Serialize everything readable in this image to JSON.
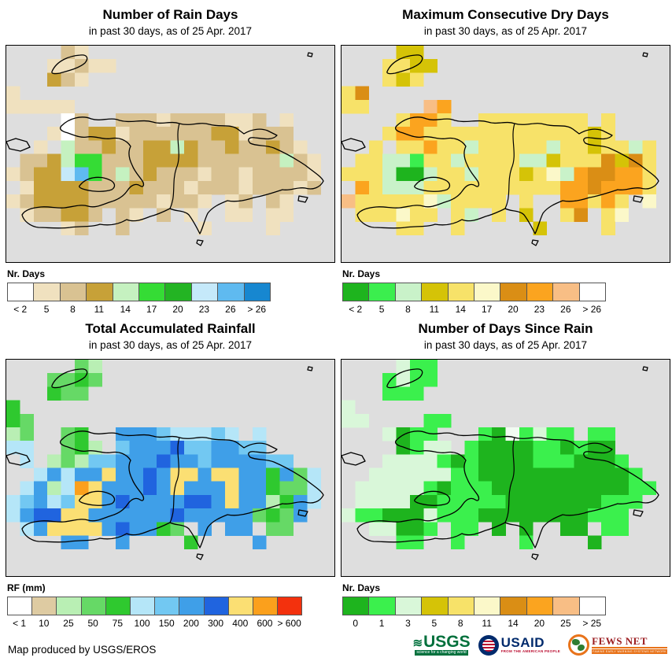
{
  "footer": {
    "credit": "Map produced by USGS/EROS"
  },
  "map_common": {
    "sea_color": "#DEDEDE",
    "date_note": "25 Apr. 2017",
    "region": "Hispaniola (Haiti / Dominican Republic)"
  },
  "panels": [
    {
      "id": "rain-days",
      "title": "Number of Rain Days",
      "subtitle": "in past 30 days, as of 25 Apr. 2017",
      "legend_label": "Nr. Days",
      "legend": [
        {
          "color": "#FFFFFF",
          "label": "< 2"
        },
        {
          "color": "#F0E1BF",
          "label": "5"
        },
        {
          "color": "#D9C292",
          "label": "8"
        },
        {
          "color": "#C7A138",
          "label": "11"
        },
        {
          "color": "#C5F1C0",
          "label": "14"
        },
        {
          "color": "#35DC35",
          "label": "17"
        },
        {
          "color": "#23B423",
          "label": "20"
        },
        {
          "color": "#C5E9FA",
          "label": "23"
        },
        {
          "color": "#5FBAF0",
          "label": "26"
        },
        {
          "color": "#1787D0",
          "label": "> 26"
        }
      ],
      "palette": {
        "w": "#FFFFFF",
        "a": "#F0E1BF",
        "b": "#D9C292",
        "c": "#C7A138",
        "d": "#C5F1C0",
        "e": "#35DC35",
        "f": "#23B423",
        "h": "#C5E9FA",
        "i": "#5FBAF0",
        "j": "#1787D0"
      },
      "grid": [
        "....ba..................",
        "...aabaa................",
        "...cba..................",
        "a.......................",
        "aaaaa...................",
        "....wb..bbbabbbbaab.a...",
        "...awbccabbbbbbccabbb...",
        "..a.dbbcbbccdcbbcbbcba..",
        ".bbcdeebbbccccbbbbbbdba.",
        "abcchiebdbcbbbabbabbbba.",
        ".accccbbbcbbbabbbabbbab.",
        "abccccbbbbbabba.ab.ba...",
        ".abbccb.ba.b.a..aa.aa...",
        "....ab..b.....a....a....",
        "........................",
        "........................"
      ]
    },
    {
      "id": "dry-days",
      "title": "Maximum Consecutive Dry Days",
      "subtitle": "in past 30 days, as of 25 Apr. 2017",
      "legend_label": "Nr. Days",
      "legend": [
        {
          "color": "#1EB41E",
          "label": "< 2"
        },
        {
          "color": "#3BEE4E",
          "label": "5"
        },
        {
          "color": "#C9F2C9",
          "label": "8"
        },
        {
          "color": "#D5C307",
          "label": "11"
        },
        {
          "color": "#F7E269",
          "label": "14"
        },
        {
          "color": "#FBF8C9",
          "label": "17"
        },
        {
          "color": "#DA8E15",
          "label": "20"
        },
        {
          "color": "#FBA41F",
          "label": "23"
        },
        {
          "color": "#F8BE85",
          "label": "26"
        },
        {
          "color": "#FFFFFF",
          "label": "> 26"
        }
      ],
      "palette": {
        "g": "#1EB41E",
        "e": "#3BEE4E",
        "d": "#C9F2C9",
        "o": "#D5C307",
        "y": "#F7E269",
        "p": "#FBF8C9",
        "D": "#DA8E15",
        "O": "#FBA41F",
        "P": "#F8BE85",
        "w": "#FFFFFF"
      },
      "grid": [
        "....oo..................",
        "...yyoo.................",
        "...yoy..................",
        "yD......................",
        "yy....PO................",
        "....yOOy..yyyyyyyy.y....",
        "...yOOyyyyyyyyyyyyoy....",
        "..y.yyOyydyyyyydyyoyydy.",
        ".yyddeyydyyyyddoyyyDoDy.",
        "yyydggdyydyyyoypdODDOOy.",
        ".OydddyyyyyyyyyyOODOOOy.",
        "Pyyyyypdyyyy.y..OOyOy.p.",
        ".yyypyy.yd.y.o..yD.yp...",
        "....yy..y.....o....y....",
        "........................",
        "........................"
      ]
    },
    {
      "id": "accum-rainfall",
      "title": "Total Accumulated Rainfall",
      "subtitle": "in past 30 days, as of 25 Apr. 2017",
      "legend_label": "RF (mm)",
      "legend": [
        {
          "color": "#FFFFFF",
          "label": "< 1"
        },
        {
          "color": "#DECBA2",
          "label": "10"
        },
        {
          "color": "#B9EFB4",
          "label": "25"
        },
        {
          "color": "#66D966",
          "label": "50"
        },
        {
          "color": "#2FC92F",
          "label": "75"
        },
        {
          "color": "#B5E6F8",
          "label": "100"
        },
        {
          "color": "#72C8F2",
          "label": "150"
        },
        {
          "color": "#3F9FE8",
          "label": "200"
        },
        {
          "color": "#2064DF",
          "label": "300"
        },
        {
          "color": "#FBDF73",
          "label": "400"
        },
        {
          "color": "#FBA01C",
          "label": "600"
        },
        {
          "color": "#F3310D",
          "label": "> 600"
        }
      ],
      "palette": {
        "d": "#B9EFB4",
        "m": "#66D966",
        "g": "#2FC92F",
        "h": "#B5E6F8",
        "i": "#72C8F2",
        "j": "#3F9FE8",
        "k": "#2064DF",
        "y": "#FBDF73",
        "O": "#FBA01C",
        "t": "#DECBA2",
        "w": "#FFFFFF"
      },
      "grid": [
        ".....md.................",
        "...mmgm.................",
        "...gmm..................",
        "g.......................",
        "gm......................",
        "dm..mg..jjjihhhih.h.....",
        "hh..mgd.ijjjkiijjii.....",
        ".h.dmdiijjjkjjijjjjii...",
        "..hjhjjyjjkjyyjyyjjgjmh.",
        ".hjdhOyjjjkjyjjjyjjgmmh.",
        "hijhiyyjkjjjjkkjyjjdgjh.",
        "hjkkyyjjjjjjkjjjjjmgmj..",
        ".hjyyyyjkjjgm.j.jj.mm...",
        "....jj..j....g....j.....",
        "........................",
        "........................"
      ]
    },
    {
      "id": "days-since-rain",
      "title": "Number of Days Since Rain",
      "subtitle": "in past 30 days, as of 25 Apr. 2017",
      "legend_label": "Nr. Days",
      "legend": [
        {
          "color": "#1EB41E",
          "label": "0"
        },
        {
          "color": "#3BF04D",
          "label": "1"
        },
        {
          "color": "#D9F7D9",
          "label": "3"
        },
        {
          "color": "#D5C307",
          "label": "5"
        },
        {
          "color": "#F7E269",
          "label": "8"
        },
        {
          "color": "#FBF8C9",
          "label": "11"
        },
        {
          "color": "#DA8E15",
          "label": "14"
        },
        {
          "color": "#FBA41F",
          "label": "20"
        },
        {
          "color": "#F8BE85",
          "label": "25"
        },
        {
          "color": "#FFFFFF",
          "label": "> 25"
        }
      ],
      "palette": {
        "d": "#D9F7D9",
        "e": "#3BF04D",
        "g": "#1EB41E",
        "w": "#F2FBF2"
      },
      "grid": [
        "....dee.................",
        "...edee.................",
        "...eee..................",
        "d.......................",
        "dd....ee................",
        "...dgee...egwedee.ee....",
        "....gedd.eggggeegegg....",
        "...ddddegeggggeeeggge...",
        "..ddddddeeggggggggggge..",
        ".dddddegeeeggggggggggee.",
        ".ddddggeeeeegggggggeee..",
        "deegggdeeeggggggggeee...",
        "..ddgge.ee.g.g..gg.ee...",
        "....ee..e....e....g.....",
        "........................",
        "........................"
      ]
    }
  ],
  "logos": [
    {
      "name": "usgs",
      "wave": "≋",
      "text": "USGS",
      "tagline": "science for a changing world",
      "color": "#00703C"
    },
    {
      "name": "usaid",
      "text": "USAID",
      "tagline": "FROM THE AMERICAN PEOPLE",
      "color": "#002A6C",
      "accent": "#BA0C2F"
    },
    {
      "name": "fews-net",
      "text": "FEWS NET",
      "tagline": "FAMINE EARLY WARNING SYSTEMS NETWORK",
      "color": "#9B1B1F",
      "accent": "#E8731A"
    }
  ]
}
